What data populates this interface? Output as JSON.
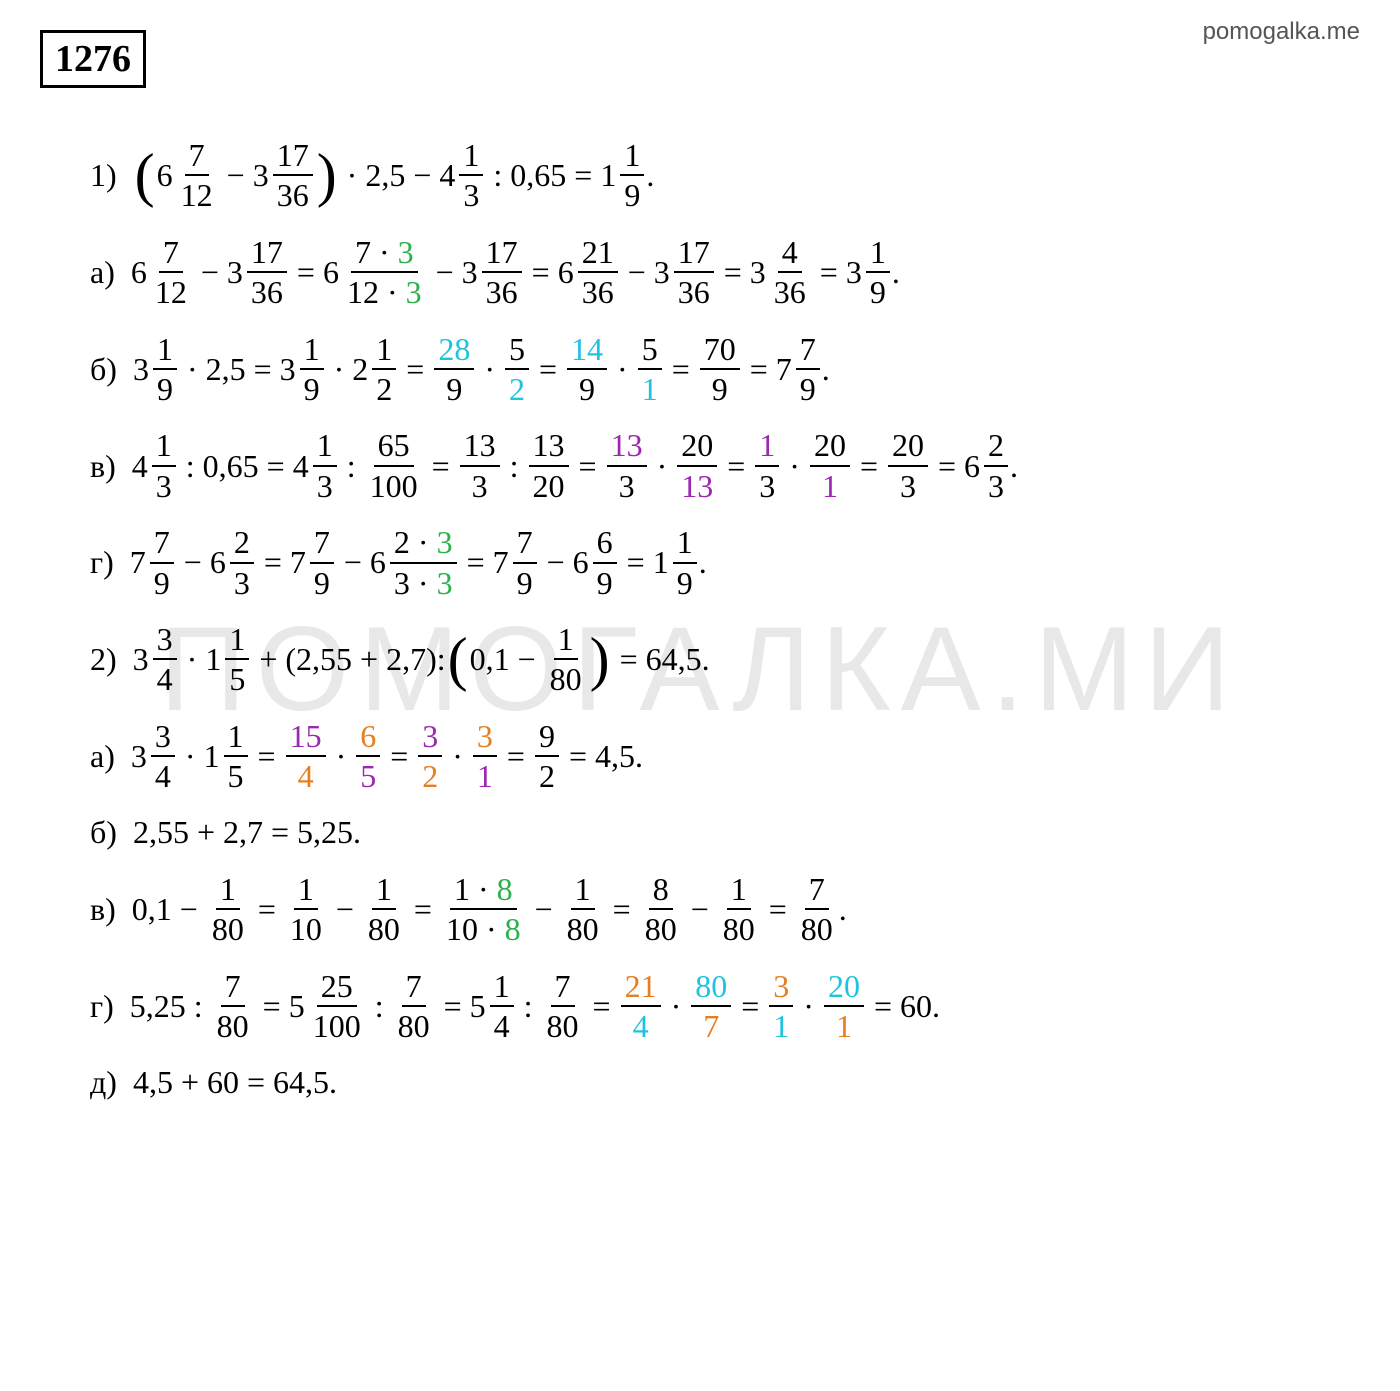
{
  "meta": {
    "watermark_url": "pomogalka.me",
    "watermark_bg": "ПОМОГАЛКА.МИ",
    "problem_number": "1276"
  },
  "colors": {
    "green": "#2bb24c",
    "cyan": "#1ec3e0",
    "purple": "#9c27b0",
    "orange": "#e67e22",
    "text": "#000000",
    "bg": "#ffffff"
  },
  "typography": {
    "base_font": "Times New Roman",
    "base_size_pt": 24,
    "number_box_size_pt": 28
  },
  "t": {
    "prob1_label": "1)",
    "prob2_label": "2)",
    "la": "а)",
    "lb": "б)",
    "lv": "в)",
    "lg": "г)",
    "ld": "д)",
    "n6": "6",
    "n7": "7",
    "n12": "12",
    "n3": "3",
    "n17": "17",
    "n36": "36",
    "n2_5": "2,5",
    "n4": "4",
    "n1": "1",
    "n0_65": "0,65",
    "n9": "9",
    "n21": "21",
    "n28": "28",
    "n5": "5",
    "n2": "2",
    "n14": "14",
    "n70": "70",
    "n13": "13",
    "n20": "20",
    "n65": "65",
    "n100": "100",
    "n2_55": "2,55",
    "n2_7": "2,7",
    "n0_1": "0,1",
    "n80": "80",
    "n64_5": "64,5",
    "n15": "15",
    "n4_5": "4,5",
    "n5_25": "5,25",
    "n8": "8",
    "n10": "10",
    "n25": "25",
    "n60": "60",
    "eq": "=",
    "minus": "−",
    "plus": "+",
    "dot": "·",
    "colon": ":",
    "period": ".",
    "p7d3": "7 · 3",
    "p12d3": "12 · 3",
    "p2d3": "2 · 3",
    "p3d3": "3 · 3",
    "p1d8": "1 · 8",
    "p10d8": "10 · 8"
  }
}
